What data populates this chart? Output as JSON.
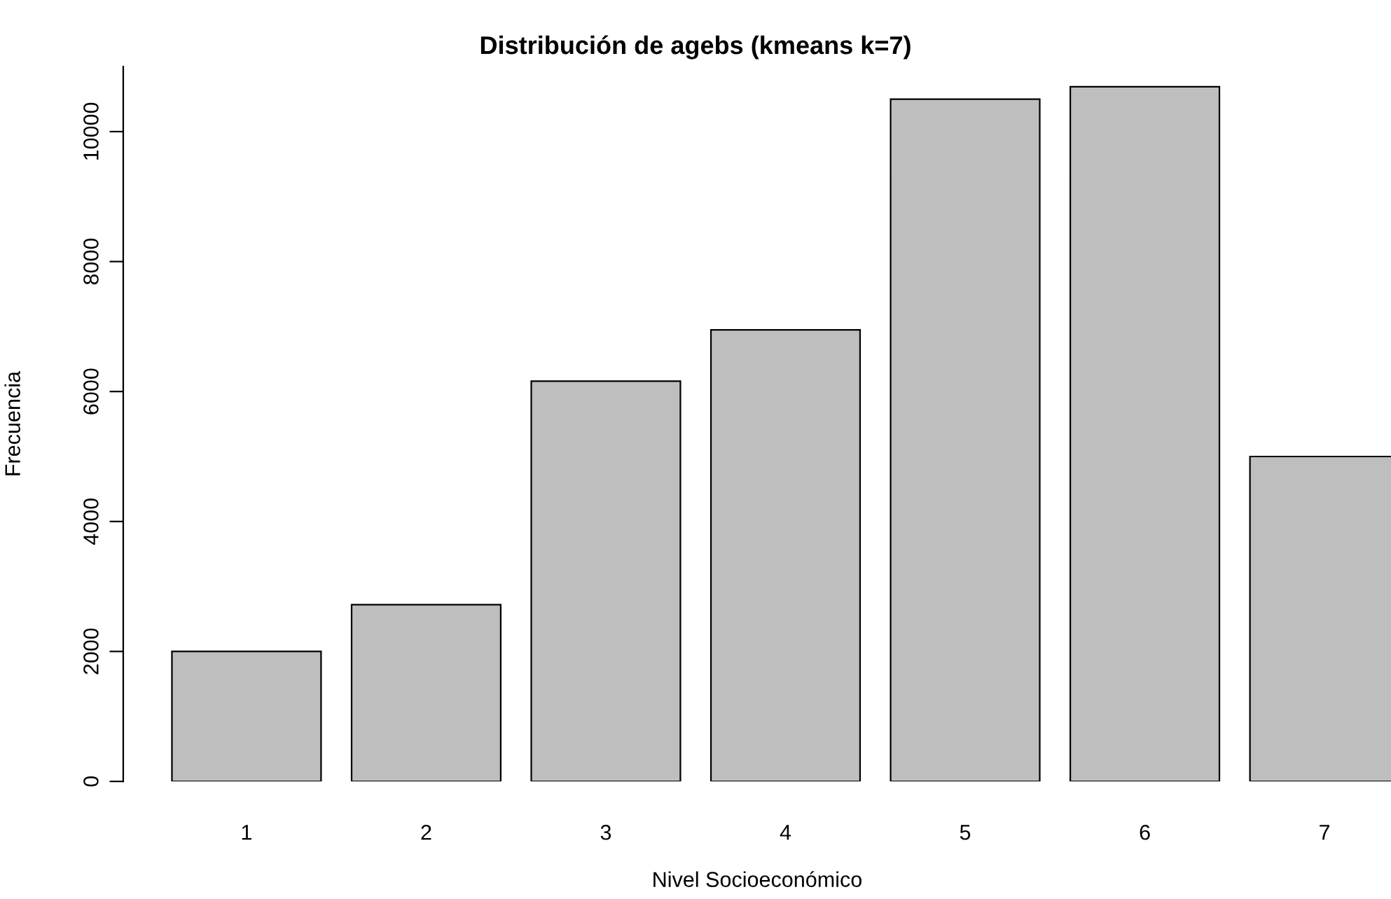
{
  "chart_data": {
    "type": "bar",
    "title": "Distribución de agebs (kmeans k=7)",
    "xlabel": "Nivel Socioeconómico",
    "ylabel": "Frecuencia",
    "categories": [
      "1",
      "2",
      "3",
      "4",
      "5",
      "6",
      "7"
    ],
    "values": [
      2000,
      2720,
      6160,
      6950,
      10500,
      10690,
      5000
    ],
    "color": "#bebebe",
    "ylim": [
      0,
      11000
    ],
    "yticks": [
      0,
      2000,
      4000,
      6000,
      8000,
      10000
    ],
    "grid": false,
    "legend": false
  }
}
